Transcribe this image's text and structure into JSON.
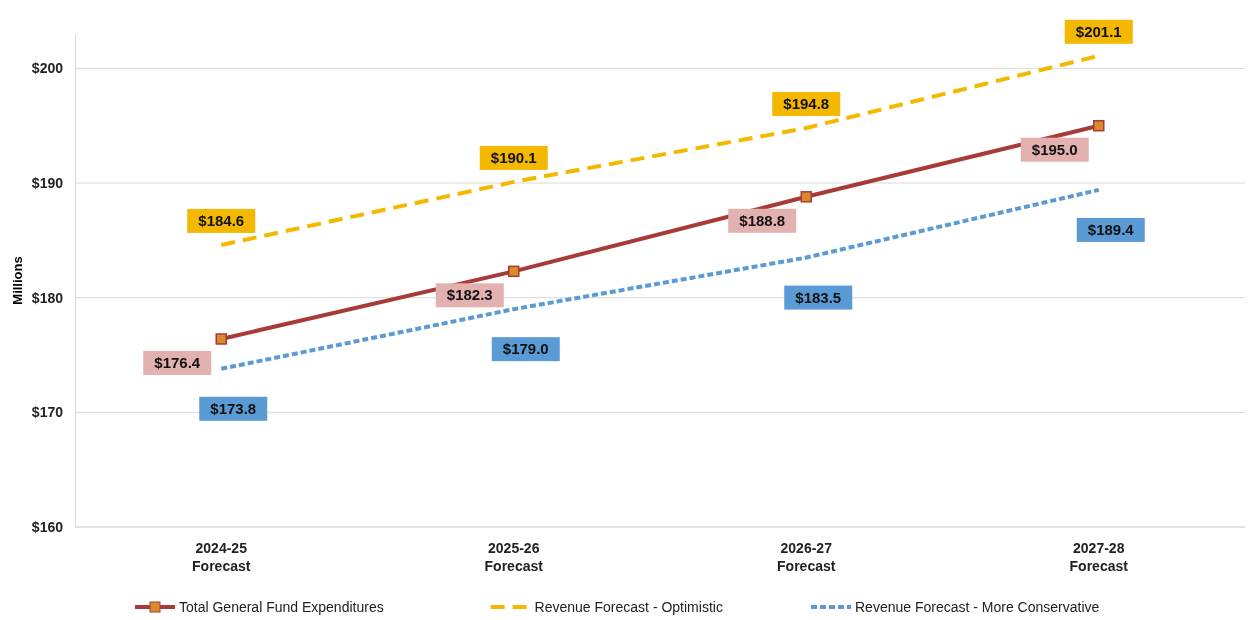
{
  "chart_data": {
    "type": "line",
    "ylabel": "Millions",
    "categories": [
      "2024-25\nForecast",
      "2025-26\nForecast",
      "2026-27\nForecast",
      "2027-28\nForecast"
    ],
    "series": [
      {
        "name": "Total General Fund Expenditures",
        "color": "#a83a3a",
        "values": [
          176.4,
          182.3,
          188.8,
          195.0
        ],
        "value_labels": [
          "$176.4",
          "$182.3",
          "$188.8",
          "$195.0"
        ],
        "marker": "square",
        "line_style": "solid"
      },
      {
        "name": "Revenue Forecast - Optimistic",
        "color": "#f5b800",
        "values": [
          184.6,
          190.1,
          194.8,
          201.1
        ],
        "value_labels": [
          "$184.6",
          "$190.1",
          "$194.8",
          "$201.1"
        ],
        "marker": "none",
        "line_style": "dashed"
      },
      {
        "name": "Revenue Forecast - More Conservative",
        "color": "#5b9bd5",
        "values": [
          173.8,
          179.0,
          183.5,
          189.4
        ],
        "value_labels": [
          "$173.8",
          "$179.0",
          "$183.5",
          "$189.4"
        ],
        "marker": "none",
        "line_style": "dotted"
      }
    ],
    "ylim": [
      160,
      203
    ],
    "yticks": [
      {
        "value": 160,
        "label": "$160"
      },
      {
        "value": 170,
        "label": "$170"
      },
      {
        "value": 180,
        "label": "$180"
      },
      {
        "value": 190,
        "label": "$190"
      },
      {
        "value": 200,
        "label": "$200"
      }
    ],
    "grid": "y",
    "legend": "bottom"
  }
}
